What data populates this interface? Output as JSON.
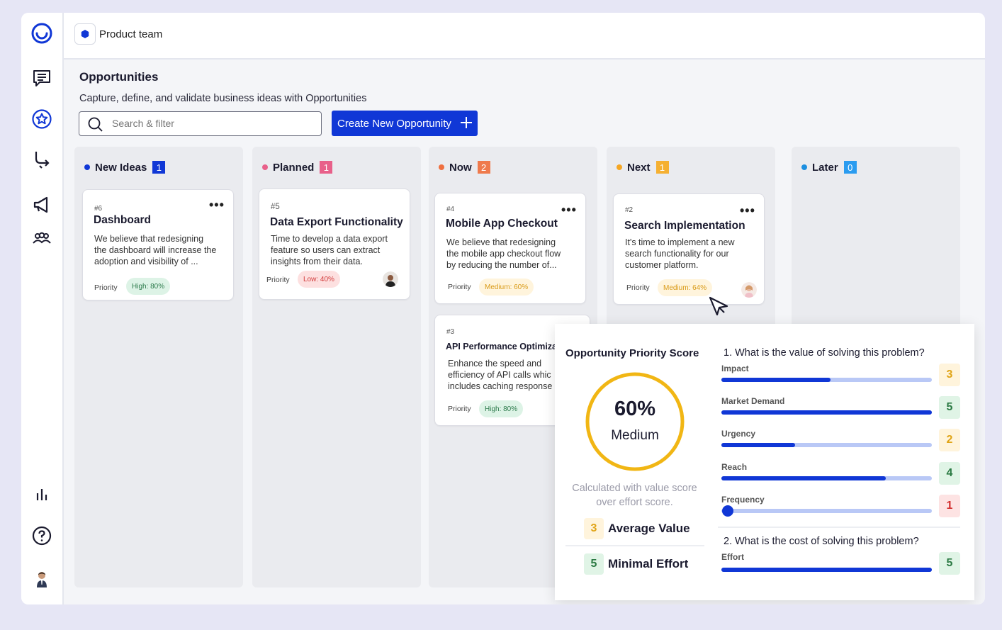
{
  "header": {
    "team_name": "Product team"
  },
  "page": {
    "title": "Opportunities",
    "subtitle": "Capture, define, and validate business ideas with Opportunities"
  },
  "search": {
    "placeholder": "Search & filter"
  },
  "create_button": {
    "label": "Create New Opportunity"
  },
  "sidebar": {
    "items": [
      "logo-icon",
      "feedback-icon",
      "star-icon",
      "route-icon",
      "megaphone-icon",
      "team-icon",
      "analytics-icon",
      "help-icon",
      "user-avatar"
    ]
  },
  "columns": [
    {
      "title": "New Ideas",
      "count": "1",
      "color": "#1037d6",
      "count_color": "#1037d6"
    },
    {
      "title": "Planned",
      "count": "1",
      "color": "#e8608a",
      "count_color": "#e8608a"
    },
    {
      "title": "Now",
      "count": "2",
      "color": "#ef6f3f",
      "count_color": "#ef7a4c"
    },
    {
      "title": "Next",
      "count": "1",
      "color": "#f5a623",
      "count_color": "#f5b032"
    },
    {
      "title": "Later",
      "count": "0",
      "color": "#1d8fe0",
      "count_color": "#2b9cf0"
    }
  ],
  "cards": [
    {
      "id": "#6",
      "title": "Dashboard",
      "desc": [
        "We believe that redesigning",
        "the dashboard will increase the",
        "adoption and visibility of ..."
      ],
      "priority_label": "Priority",
      "badge": "High: 80%"
    },
    {
      "id": "#5",
      "title": "Data Export Functionality",
      "desc": [
        "Time to develop a data export",
        "feature so users can extract",
        "insights from their data."
      ],
      "priority_label": "Priority",
      "badge": "Low: 40%"
    },
    {
      "id": "#4",
      "title": "Mobile App Checkout",
      "desc": [
        "We believe that redesigning",
        "the mobile app checkout flow",
        "by reducing the number of..."
      ],
      "priority_label": "Priority",
      "badge": "Medium: 60%"
    },
    {
      "id": "#3",
      "title": "API Performance Optimiza",
      "desc": [
        "Enhance the speed and",
        "efficiency of API calls whic",
        "includes caching response"
      ],
      "priority_label": "Priority",
      "badge": "High: 80%"
    },
    {
      "id": "#2",
      "title": "Search Implementation",
      "desc": [
        "It's time to implement a new",
        "search functionality for our",
        "customer platform."
      ],
      "priority_label": "Priority",
      "badge": "Medium: 64%"
    }
  ],
  "score_panel": {
    "title": "Opportunity Priority Score",
    "score_percent": "60%",
    "score_fraction": 0.6,
    "score_label": "Medium",
    "note_line1": "Calculated with value score",
    "note_line2": "over effort score.",
    "value_score": "3",
    "value_label": "Average Value",
    "effort_score": "5",
    "effort_label": "Minimal Effort",
    "q1": "1. What is the value of solving this problem?",
    "q2": "2. What is the cost of solving this problem?",
    "metrics": [
      {
        "label": "Impact",
        "score": "3",
        "fraction": 0.52
      },
      {
        "label": "Market Demand",
        "score": "5",
        "fraction": 1.0
      },
      {
        "label": "Urgency",
        "score": "2",
        "fraction": 0.35
      },
      {
        "label": "Reach",
        "score": "4",
        "fraction": 0.78
      },
      {
        "label": "Frequency",
        "score": "1",
        "fraction": 0.03
      }
    ],
    "effort_metric": {
      "label": "Effort",
      "score": "5",
      "fraction": 1.0
    }
  }
}
